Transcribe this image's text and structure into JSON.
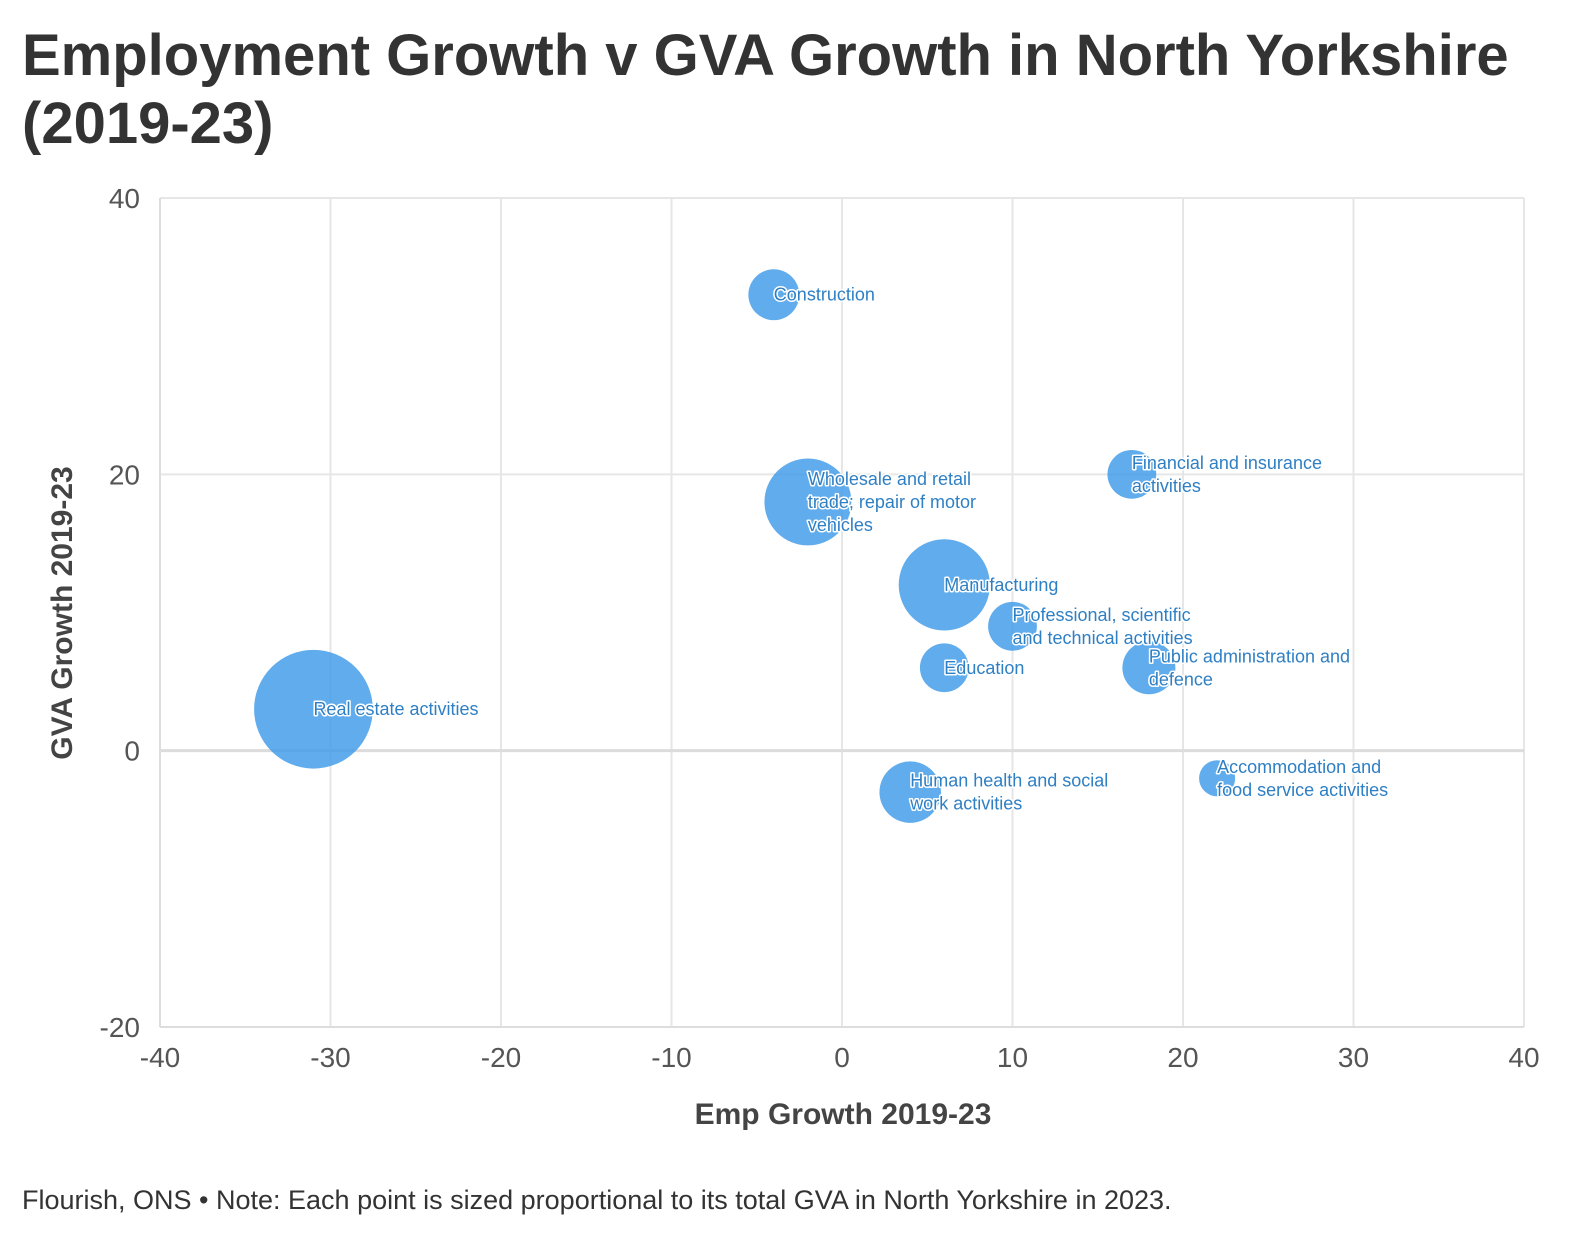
{
  "title": "Employment Growth v GVA Growth in North Yorkshire (2019-23)",
  "footer": "Flourish, ONS • Note: Each point is sized proportional to its total GVA in North Yorkshire in 2023.",
  "chart_data": {
    "type": "scatter",
    "title": "Employment Growth v GVA Growth in North Yorkshire (2019-23)",
    "xlabel": "Emp Growth 2019-23",
    "ylabel": "GVA Growth 2019-23",
    "xlim": [
      -40,
      40
    ],
    "ylim": [
      -20,
      40
    ],
    "xticks": [
      -40,
      -30,
      -20,
      -10,
      0,
      10,
      20,
      30,
      40
    ],
    "yticks": [
      -20,
      0,
      20,
      40
    ],
    "grid": true,
    "bubble_color": "#3d9ae8",
    "label_color": "#2e7fc4",
    "size_note": "Each point is sized proportional to its total GVA in North Yorkshire in 2023",
    "points": [
      {
        "label": "Construction",
        "label_lines": [
          "Construction"
        ],
        "x": -4,
        "y": 33,
        "size": 2.4
      },
      {
        "label": "Wholesale and retail trade; repair of motor vehicles",
        "label_lines": [
          "Wholesale and retail",
          "trade; repair of motor",
          "vehicles"
        ],
        "x": -2,
        "y": 18,
        "size": 4.1
      },
      {
        "label": "Financial and insurance activities",
        "label_lines": [
          "Financial and insurance",
          "activities"
        ],
        "x": 17,
        "y": 20,
        "size": 2.3
      },
      {
        "label": "Manufacturing",
        "label_lines": [
          "Manufacturing"
        ],
        "x": 6,
        "y": 12,
        "size": 4.3
      },
      {
        "label": "Professional, scientific and technical activities",
        "label_lines": [
          "Professional, scientific",
          "and technical activities"
        ],
        "x": 10,
        "y": 9,
        "size": 2.3
      },
      {
        "label": "Education",
        "label_lines": [
          "Education"
        ],
        "x": 6,
        "y": 6,
        "size": 2.3
      },
      {
        "label": "Public administration and defence",
        "label_lines": [
          "Public administration and",
          "defence"
        ],
        "x": 18,
        "y": 6,
        "size": 2.5
      },
      {
        "label": "Real estate activities",
        "label_lines": [
          "Real estate activities"
        ],
        "x": -31,
        "y": 3,
        "size": 5.6
      },
      {
        "label": "Human health and social work activities",
        "label_lines": [
          "Human health and social",
          "work activities"
        ],
        "x": 4,
        "y": -3,
        "size": 2.9
      },
      {
        "label": "Accommodation and food service activities",
        "label_lines": [
          "Accommodation and",
          "food service activities"
        ],
        "x": 22,
        "y": -2,
        "size": 1.7
      }
    ]
  }
}
